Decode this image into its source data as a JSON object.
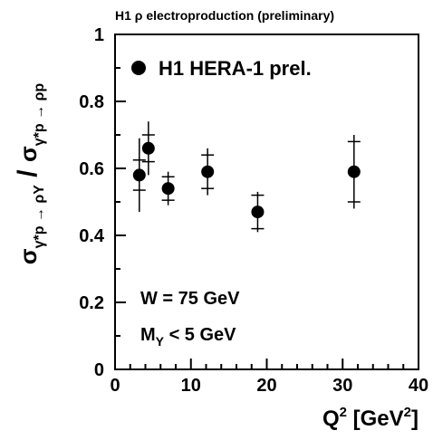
{
  "chart_data": {
    "type": "scatter",
    "title": "H1 ρ electroproduction (preliminary)",
    "x_label": [
      "Q",
      "2",
      " [GeV",
      "2",
      "]"
    ],
    "y_label": [
      "σ",
      "γ*p → ρY",
      " / ",
      "σ",
      "γ*p → ρp"
    ],
    "annotations": [
      [
        "W = 75 GeV"
      ],
      [
        "M",
        "Y",
        " < 5 GeV"
      ]
    ],
    "legend": "top-left",
    "series": [
      {
        "name": "H1 HERA-1 prel.",
        "color": "#000000",
        "x": [
          3.2,
          4.4,
          7.0,
          12.2,
          18.8,
          31.5
        ],
        "values": [
          0.58,
          0.66,
          0.54,
          0.59,
          0.47,
          0.59
        ],
        "stat_err": [
          0.045,
          0.04,
          0.035,
          0.05,
          0.05,
          0.09
        ],
        "total_err": [
          0.11,
          0.08,
          0.05,
          0.07,
          0.06,
          0.11
        ]
      }
    ],
    "xlim": [
      0,
      40
    ],
    "xticks": [
      0,
      10,
      20,
      30,
      40
    ],
    "xminor": [
      2,
      4,
      6,
      8,
      12,
      14,
      16,
      18,
      22,
      24,
      26,
      28,
      32,
      34,
      36,
      38
    ],
    "ylim": [
      0,
      1
    ],
    "yticks": [
      0,
      0.2,
      0.4,
      0.6,
      0.8,
      1
    ],
    "yminor": [
      0.1,
      0.3,
      0.5,
      0.7,
      0.9
    ]
  }
}
